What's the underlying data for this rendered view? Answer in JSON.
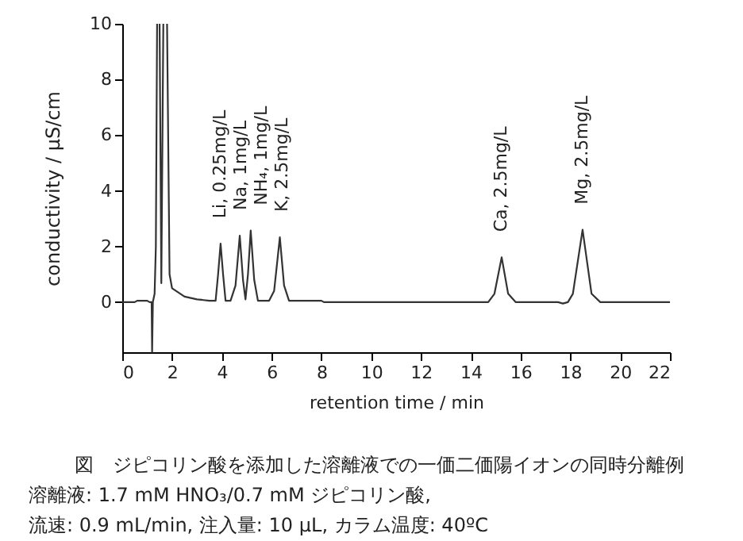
{
  "chart_data": {
    "type": "line",
    "xlabel": "retention time / min",
    "ylabel": "conductivity / μS/cm",
    "xlim": [
      0,
      22
    ],
    "xticks": [
      0,
      2,
      4,
      6,
      8,
      10,
      12,
      14,
      16,
      18,
      20,
      22
    ],
    "ylim": [
      -1.8,
      10
    ],
    "yticks": [
      0,
      2,
      4,
      6,
      8,
      10
    ],
    "marker": "none",
    "line_style": "solid",
    "series": [
      {
        "color": "#333333",
        "x": [
          0,
          0.5,
          0.6,
          1.0,
          1.1,
          1.18,
          1.2,
          1.23,
          1.3,
          1.35,
          1.4,
          1.45,
          1.5,
          1.57,
          1.65,
          1.72,
          1.8,
          1.9,
          2.0,
          2.5,
          3.0,
          3.5,
          3.75,
          3.85,
          3.95,
          4.05,
          4.15,
          4.35,
          4.55,
          4.72,
          4.85,
          4.95,
          5.05,
          5.16,
          5.3,
          5.45,
          5.9,
          6.1,
          6.33,
          6.5,
          6.7,
          8.0,
          8.1,
          14.7,
          14.95,
          15.24,
          15.5,
          15.8,
          17.5,
          17.7,
          17.9,
          18.1,
          18.49,
          18.85,
          19.2,
          21,
          22
        ],
        "values": [
          0,
          0,
          0.05,
          0.05,
          0,
          0,
          -1.8,
          0,
          0.3,
          2,
          10,
          null,
          10,
          0.68,
          10,
          null,
          10,
          1.0,
          0.5,
          0.2,
          0.1,
          0.05,
          0.05,
          1.0,
          2.1,
          1.0,
          0.05,
          0.05,
          0.6,
          2.39,
          0.8,
          0.1,
          1.0,
          2.57,
          0.8,
          0.05,
          0.05,
          0.4,
          2.33,
          0.6,
          0.05,
          0.05,
          0,
          0,
          0.3,
          1.61,
          0.3,
          0,
          0,
          -0.05,
          0,
          0.3,
          2.6,
          0.3,
          0,
          0,
          0
        ]
      }
    ],
    "annotations": [
      {
        "text": "Li, 0.25mg/L",
        "x": 3.95,
        "y": 2.1
      },
      {
        "text": "Na, 1mg/L",
        "x": 4.72,
        "y": 2.39
      },
      {
        "text": "NH₄, 1mg/L",
        "x": 5.16,
        "y": 2.57
      },
      {
        "text": "K, 2.5mg/L",
        "x": 6.33,
        "y": 2.33
      },
      {
        "text": "Ca, 2.5mg/L",
        "x": 15.24,
        "y": 1.61
      },
      {
        "text": "Mg, 2.5mg/L",
        "x": 18.49,
        "y": 2.6
      },
      "図　ジピコリン酸を添加した溶離液での一価二価陽イオンの同時分離例",
      "溶離液: 1.7 mM HNO₃/0.7 mM ジピコリン酸,",
      "流速: 0.9 mL/min, 注入量: 10 μL, カラム温度: 40ºC"
    ]
  }
}
